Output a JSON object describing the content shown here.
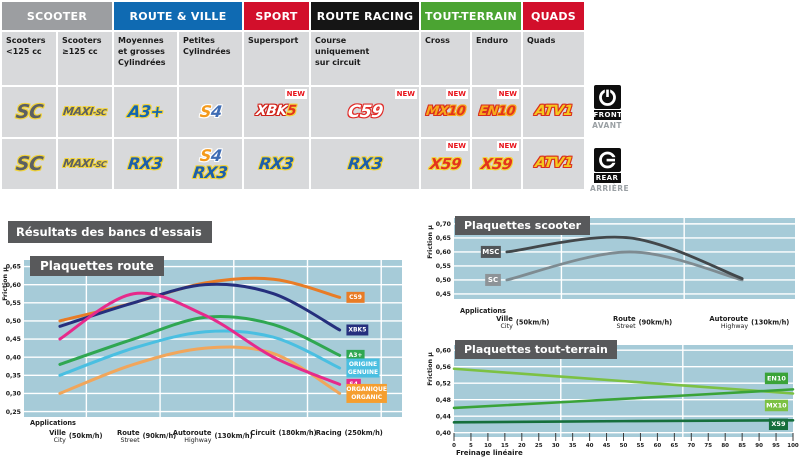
{
  "results_title": "Résultats des bancs d'essais",
  "colors": {
    "plot_bg": "#a6cbd8",
    "title_box": "#58595b",
    "cell_bg": "#d8d9db",
    "badge_red": "#e8131b"
  },
  "table": {
    "categories": [
      {
        "label": "SCOOTER",
        "bg": "#9c9ea1",
        "cols": 2
      },
      {
        "label": "ROUTE & VILLE",
        "bg": "#0f6ab2",
        "cols": 2
      },
      {
        "label": "SPORT",
        "bg": "#d20f2b",
        "cols": 1
      },
      {
        "label": "ROUTE RACING",
        "bg": "#151515",
        "cols": 1
      },
      {
        "label": "TOUT-TERRAIN",
        "bg": "#4ba432",
        "cols": 2
      },
      {
        "label": "QUADS",
        "bg": "#d20f2b",
        "cols": 1
      }
    ],
    "subheaders": [
      "Scooters\n<125 cc",
      "Scooters\n≥125 cc",
      "Moyennes\net grosses\nCylindrées",
      "Petites\nCylindrées",
      "Supersport",
      "Course\nuniquement\nsur circuit",
      "Cross",
      "Enduro",
      "Quads"
    ],
    "logo_styles": {
      "SC": {
        "size": 19,
        "parts": [
          {
            "t": "SC",
            "c": "#5c6063",
            "o": "#f2d43c"
          }
        ]
      },
      "MAXI-SC": {
        "size": 11,
        "parts": [
          {
            "t": "MAXI",
            "c": "#5c6063",
            "o": "#f2d43c"
          },
          {
            "t": "-SC",
            "c": "#5c6063",
            "o": "#f2d43c",
            "small": true
          }
        ]
      },
      "A3+": {
        "size": 16,
        "parts": [
          {
            "t": "A3+",
            "c": "#1365b0",
            "o": "#f2d43c"
          }
        ]
      },
      "S4": {
        "size": 16,
        "parts": [
          {
            "t": "S",
            "c": "#f49a1c",
            "o": "#ffffff"
          },
          {
            "t": "4",
            "c": "#3e6cb4",
            "o": "#ffffff"
          }
        ]
      },
      "XBK5": {
        "size": 14,
        "parts": [
          {
            "t": "XBK",
            "c": "#ffffff",
            "o": "#cf2017"
          },
          {
            "t": "5",
            "c": "#e3341c",
            "o": "#f2d43c"
          }
        ]
      },
      "C59": {
        "size": 17,
        "parts": [
          {
            "t": "C59",
            "c": "#ffffff",
            "o": "#e02a26"
          }
        ]
      },
      "MX10": {
        "size": 13,
        "parts": [
          {
            "t": "MX",
            "c": "#f7a81b",
            "o": "#d92c1e"
          },
          {
            "t": "10",
            "c": "#e3341c",
            "o": "#f7a81b"
          }
        ]
      },
      "EN10": {
        "size": 13,
        "parts": [
          {
            "t": "EN",
            "c": "#f7a81b",
            "o": "#d92c1e"
          },
          {
            "t": "10",
            "c": "#e3341c",
            "o": "#f7a81b"
          }
        ]
      },
      "ATV1": {
        "size": 14,
        "parts": [
          {
            "t": "ATV1",
            "c": "#f4c81f",
            "o": "#d92c1e"
          }
        ]
      },
      "RX3": {
        "size": 16,
        "parts": [
          {
            "t": "RX3",
            "c": "#1d5fab",
            "o": "#f2d43c"
          }
        ]
      },
      "X59": {
        "size": 15,
        "parts": [
          {
            "t": "X59",
            "c": "#e3341c",
            "o": "#f2d43c"
          }
        ]
      }
    },
    "front_row": [
      {
        "logos": [
          "SC"
        ]
      },
      {
        "logos": [
          "MAXI-SC"
        ]
      },
      {
        "logos": [
          "A3+"
        ]
      },
      {
        "logos": [
          "S4"
        ]
      },
      {
        "logos": [
          "XBK5"
        ],
        "badge": "NEW"
      },
      {
        "logos": [
          "C59"
        ],
        "badge": "NEW"
      },
      {
        "logos": [
          "MX10"
        ],
        "badge": "NEW"
      },
      {
        "logos": [
          "EN10"
        ],
        "badge": "NEW"
      },
      {
        "logos": [
          "ATV1"
        ]
      }
    ],
    "rear_row": [
      {
        "logos": [
          "SC"
        ]
      },
      {
        "logos": [
          "MAXI-SC"
        ]
      },
      {
        "logos": [
          "RX3"
        ]
      },
      {
        "logos": [
          "S4",
          "RX3"
        ]
      },
      {
        "logos": [
          "RX3"
        ]
      },
      {
        "logos": [
          "RX3"
        ]
      },
      {
        "logos": [
          "X59"
        ],
        "badge": "NEW"
      },
      {
        "logos": [
          "X59"
        ],
        "badge": "NEW"
      },
      {
        "logos": [
          "ATV1"
        ]
      }
    ]
  },
  "side_blocks": [
    {
      "icon": "brake-disc-front-icon",
      "label": "FRONT",
      "sub": "AVANT"
    },
    {
      "icon": "brake-disc-rear-icon",
      "label": "REAR",
      "sub": "ARRIÈRE"
    }
  ],
  "chart_data": [
    {
      "id": "route",
      "type": "line",
      "title": "Plaquettes route",
      "ylabel": "Friction µ",
      "xlabel": "Applications",
      "ylim": [
        0.25,
        0.65
      ],
      "grid": true,
      "legend_position": "right-of-lines",
      "yticks": [
        {
          "v": 0.65,
          "t": "0,65"
        },
        {
          "v": 0.6,
          "t": "0,60"
        },
        {
          "v": 0.55,
          "t": "0,55"
        },
        {
          "v": 0.5,
          "t": "0,50"
        },
        {
          "v": 0.45,
          "t": "0,45"
        },
        {
          "v": 0.4,
          "t": "0,40"
        },
        {
          "v": 0.35,
          "t": "0,35"
        },
        {
          "v": 0.3,
          "t": "0,30"
        },
        {
          "v": 0.25,
          "t": "0,25"
        }
      ],
      "x_categories": [
        {
          "fr": "Ville",
          "en": "City",
          "speed": "(50km/h)"
        },
        {
          "fr": "Route",
          "en": "Street",
          "speed": "(90km/h)"
        },
        {
          "fr": "Autoroute",
          "en": "Highway",
          "speed": "(130km/h)"
        },
        {
          "fr": "Circuit",
          "en": "",
          "speed": "(180km/h)"
        },
        {
          "fr": "Racing",
          "en": "",
          "speed": "(250km/h)"
        }
      ],
      "series": [
        {
          "name": "C59",
          "color": "#e87c26",
          "legend": [
            "C59"
          ],
          "values": [
            0.5,
            0.55,
            0.605,
            0.615,
            0.565
          ]
        },
        {
          "name": "XBK5",
          "color": "#252f7d",
          "legend": [
            "XBK5"
          ],
          "values": [
            0.485,
            0.55,
            0.6,
            0.575,
            0.475
          ]
        },
        {
          "name": "S4",
          "color": "#e62a8b",
          "legend": [
            "S4"
          ],
          "values": [
            0.45,
            0.575,
            0.515,
            0.4,
            0.325
          ]
        },
        {
          "name": "A3+",
          "color": "#2fa751",
          "legend": [
            "A3+"
          ],
          "values": [
            0.38,
            0.45,
            0.51,
            0.49,
            0.405
          ]
        },
        {
          "name": "ORIGINE",
          "color": "#4abfe1",
          "legend": [
            "ORIGINE",
            "GENUINE"
          ],
          "values": [
            0.35,
            0.425,
            0.47,
            0.455,
            0.37
          ]
        },
        {
          "name": "ORGANIQUE",
          "color": "#f1a65b",
          "legend_bg": "#f59e2f",
          "legend": [
            "ORGANIQUE",
            "ORGANIC"
          ],
          "values": [
            0.3,
            0.38,
            0.425,
            0.41,
            0.3
          ]
        }
      ]
    },
    {
      "id": "scooter",
      "type": "line",
      "title": "Plaquettes scooter",
      "ylabel": "Friction µ",
      "xlabel": "Applications",
      "ylim": [
        0.45,
        0.7
      ],
      "grid": true,
      "legend_position": "left-of-lines",
      "yticks": [
        {
          "v": 0.7,
          "t": "0,70"
        },
        {
          "v": 0.65,
          "t": "0,65"
        },
        {
          "v": 0.6,
          "t": "0,60"
        },
        {
          "v": 0.55,
          "t": "0,55"
        },
        {
          "v": 0.5,
          "t": "0,50"
        },
        {
          "v": 0.45,
          "t": "0,45"
        }
      ],
      "x_categories": [
        {
          "fr": "Ville",
          "en": "City",
          "speed": "(50km/h)"
        },
        {
          "fr": "Route",
          "en": "Street",
          "speed": "(90km/h)"
        },
        {
          "fr": "Autoroute",
          "en": "Highway",
          "speed": "(130km/h)"
        }
      ],
      "series": [
        {
          "name": "MSC",
          "color": "#42474a",
          "legend_bg": "#515558",
          "legend": [
            "MSC"
          ],
          "values": [
            0.6,
            0.65,
            0.505
          ]
        },
        {
          "name": "SC",
          "color": "#7e8b91",
          "legend_bg": "#8d9397",
          "legend": [
            "SC"
          ],
          "values": [
            0.5,
            0.6,
            0.5
          ]
        }
      ]
    },
    {
      "id": "toutterrain",
      "type": "line",
      "title": "Plaquettes tout-terrain",
      "ylabel": "Friction µ",
      "xlabel": "Freinage linéaire",
      "ylim": [
        0.4,
        0.6
      ],
      "grid": true,
      "legend_position": "right-inside",
      "yticks": [
        {
          "v": 0.6,
          "t": "0,60"
        },
        {
          "v": 0.56,
          "t": "0,56"
        },
        {
          "v": 0.52,
          "t": "0,52"
        },
        {
          "v": 0.48,
          "t": "0,48"
        },
        {
          "v": 0.44,
          "t": "0,44"
        },
        {
          "v": 0.4,
          "t": "0,40"
        }
      ],
      "xticks": [
        0,
        5,
        10,
        15,
        20,
        25,
        30,
        35,
        40,
        45,
        50,
        55,
        60,
        65,
        70,
        75,
        80,
        85,
        90,
        95,
        100
      ],
      "x_values": [
        0,
        50,
        100
      ],
      "series": [
        {
          "name": "MX10",
          "color": "#7cc143",
          "legend": [
            "MX10"
          ],
          "legend_dy": 12,
          "values": [
            0.555,
            0.525,
            0.495
          ]
        },
        {
          "name": "EN10",
          "color": "#3aa338",
          "legend": [
            "EN10"
          ],
          "legend_dy": -11,
          "values": [
            0.46,
            0.482,
            0.505
          ]
        },
        {
          "name": "X59",
          "color": "#166f3c",
          "legend": [
            "X59"
          ],
          "legend_dy": 4,
          "values": [
            0.425,
            0.428,
            0.43
          ]
        }
      ]
    }
  ]
}
